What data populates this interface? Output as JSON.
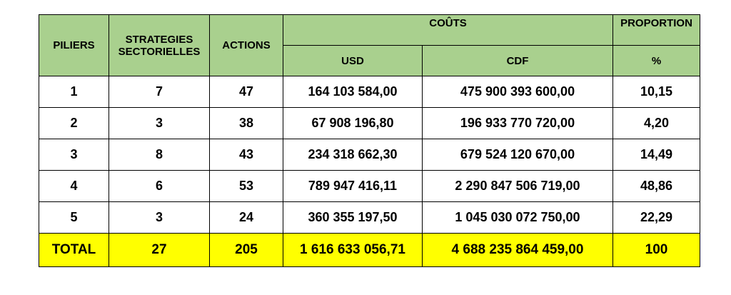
{
  "table": {
    "headers": {
      "piliers": "PILIERS",
      "strategies": "STRATEGIES SECTORIELLES",
      "actions": "ACTIONS",
      "couts": "COÛTS",
      "proportion": "PROPORTION",
      "usd": "USD",
      "cdf": "CDF",
      "percent": "%"
    },
    "rows": [
      [
        "1",
        "7",
        "47",
        "164 103 584,00",
        "475 900 393 600,00",
        "10,15"
      ],
      [
        "2",
        "3",
        "38",
        "67 908 196,80",
        "196 933 770 720,00",
        "4,20"
      ],
      [
        "3",
        "8",
        "43",
        "234 318 662,30",
        "679 524 120 670,00",
        "14,49"
      ],
      [
        "4",
        "6",
        "53",
        "789 947 416,11",
        "2 290 847 506 719,00",
        "48,86"
      ],
      [
        "5",
        "3",
        "24",
        "360 355 197,50",
        "1 045 030 072 750,00",
        "22,29"
      ]
    ],
    "total": [
      "TOTAL",
      "27",
      "205",
      "1 616 633 056,71",
      "4 688 235 864 459,00",
      "100"
    ]
  }
}
